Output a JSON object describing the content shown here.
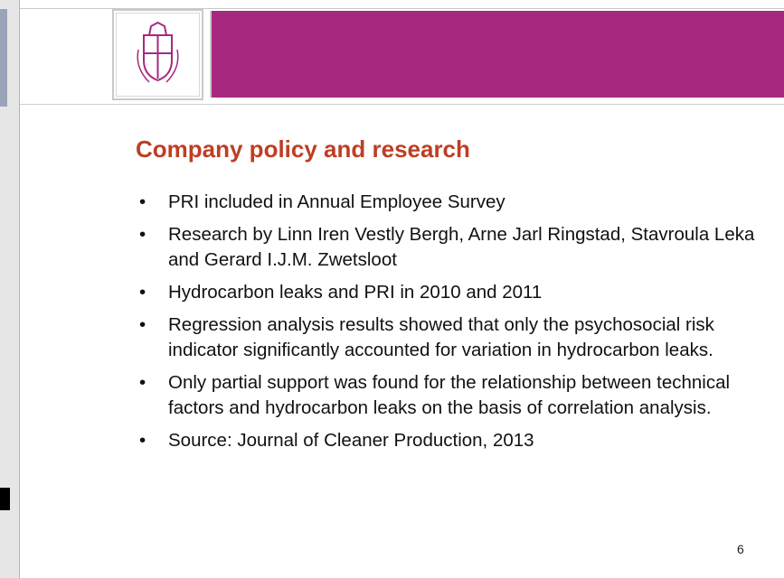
{
  "slide": {
    "title": "Company policy and research",
    "bullets": [
      "PRI included in Annual Employee Survey",
      "Research by Linn Iren Vestly Bergh, Arne Jarl Ringstad, Stavroula Leka and Gerard I.J.M. Zwetsloot",
      "Hydrocarbon leaks and PRI in 2010 and 2011",
      "Regression analysis results showed that only the psychosocial risk indicator significantly accounted for variation in hydrocarbon leaks.",
      "Only partial support was found for the relationship between technical factors and hydrocarbon leaks on the basis of correlation analysis.",
      "Source: Journal of Cleaner Production, 2013"
    ],
    "page_number": "6"
  }
}
